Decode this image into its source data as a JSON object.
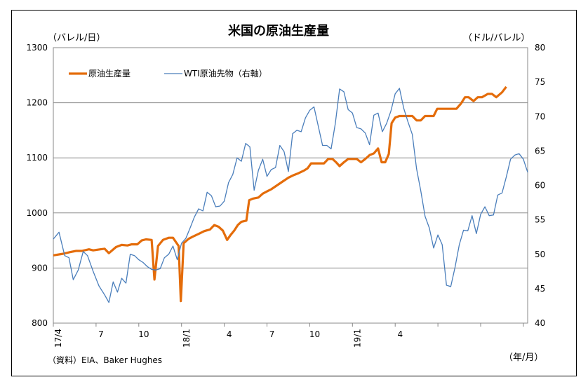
{
  "chart_data": {
    "type": "line",
    "title": "米国の原油生産量",
    "left_axis_unit": "（バレル/日）",
    "right_axis_unit": "（ドル/バレル）",
    "x_axis_unit": "（年/月）",
    "source": "（資料）EIA、Baker Hughes",
    "left_ylim": [
      800,
      1300
    ],
    "left_yticks": [
      800,
      900,
      1000,
      1100,
      1200,
      1300
    ],
    "right_ylim": [
      40,
      80
    ],
    "right_yticks": [
      40,
      45,
      50,
      55,
      60,
      65,
      70,
      75,
      80
    ],
    "grid": true,
    "legend_position": "top-left",
    "x_range": [
      "2017-04",
      "2019-05"
    ],
    "x_ticks": [
      {
        "label": "17/4",
        "rotated": true
      },
      {
        "label": "7",
        "rotated": false
      },
      {
        "label": "10",
        "rotated": false
      },
      {
        "label": "18/1",
        "rotated": true
      },
      {
        "label": "4",
        "rotated": false
      },
      {
        "label": "7",
        "rotated": false
      },
      {
        "label": "10",
        "rotated": false
      },
      {
        "label": "19/1",
        "rotated": true
      },
      {
        "label": "4",
        "rotated": false
      }
    ],
    "series": [
      {
        "name": "原油生産量",
        "axis": "left",
        "color": "#E46C0A",
        "points": [
          [
            0,
            923
          ],
          [
            0.7,
            926
          ],
          [
            1.2,
            929
          ],
          [
            1.6,
            931
          ],
          [
            2.0,
            931
          ],
          [
            2.5,
            934
          ],
          [
            2.8,
            932
          ],
          [
            3.3,
            934
          ],
          [
            3.6,
            935
          ],
          [
            3.9,
            927
          ],
          [
            4.4,
            938
          ],
          [
            4.8,
            942
          ],
          [
            5.2,
            941
          ],
          [
            5.5,
            943
          ],
          [
            5.9,
            943
          ],
          [
            6.2,
            950
          ],
          [
            6.5,
            952
          ],
          [
            6.9,
            951
          ],
          [
            7.1,
            879
          ],
          [
            7.35,
            940
          ],
          [
            7.7,
            951
          ],
          [
            8.1,
            955
          ],
          [
            8.4,
            955
          ],
          [
            8.8,
            940
          ],
          [
            8.95,
            840
          ],
          [
            9.15,
            945
          ],
          [
            9.5,
            953
          ],
          [
            9.8,
            957
          ],
          [
            10.2,
            962
          ],
          [
            10.6,
            967
          ],
          [
            11.0,
            970
          ],
          [
            11.3,
            978
          ],
          [
            11.6,
            975
          ],
          [
            11.9,
            968
          ],
          [
            12.2,
            951
          ],
          [
            12.45,
            960
          ],
          [
            12.7,
            968
          ],
          [
            12.95,
            978
          ],
          [
            13.2,
            984
          ],
          [
            13.55,
            986
          ],
          [
            13.75,
            1023
          ],
          [
            14.0,
            1026
          ],
          [
            14.4,
            1028
          ],
          [
            14.7,
            1035
          ],
          [
            15.0,
            1039
          ],
          [
            15.3,
            1043
          ],
          [
            15.7,
            1050
          ],
          [
            16.1,
            1057
          ],
          [
            16.5,
            1064
          ],
          [
            16.9,
            1069
          ],
          [
            17.2,
            1072
          ],
          [
            17.6,
            1077
          ],
          [
            17.85,
            1081
          ],
          [
            18.1,
            1090
          ],
          [
            18.4,
            1090
          ],
          [
            18.7,
            1090
          ],
          [
            19.0,
            1090
          ],
          [
            19.3,
            1098
          ],
          [
            19.6,
            1098
          ],
          [
            19.85,
            1092
          ],
          [
            20.1,
            1085
          ],
          [
            20.4,
            1092
          ],
          [
            20.7,
            1098
          ],
          [
            21.0,
            1098
          ],
          [
            21.3,
            1098
          ],
          [
            21.6,
            1092
          ],
          [
            21.9,
            1098
          ],
          [
            22.2,
            1105
          ],
          [
            22.5,
            1108
          ],
          [
            22.8,
            1117
          ],
          [
            23.05,
            1092
          ],
          [
            23.3,
            1092
          ],
          [
            23.55,
            1107
          ],
          [
            23.75,
            1163
          ],
          [
            24.0,
            1173
          ],
          [
            24.3,
            1176
          ],
          [
            24.6,
            1176
          ],
          [
            24.9,
            1176
          ],
          [
            25.2,
            1176
          ],
          [
            25.5,
            1168
          ],
          [
            25.8,
            1168
          ],
          [
            26.1,
            1176
          ],
          [
            26.4,
            1176
          ],
          [
            26.7,
            1176
          ],
          [
            26.95,
            1189
          ],
          [
            27.3,
            1189
          ],
          [
            27.7,
            1189
          ],
          [
            28.0,
            1189
          ],
          [
            28.3,
            1189
          ],
          [
            28.6,
            1198
          ],
          [
            28.9,
            1210
          ],
          [
            29.15,
            1210
          ],
          [
            29.5,
            1203
          ],
          [
            29.8,
            1210
          ],
          [
            30.1,
            1210
          ],
          [
            30.5,
            1216
          ],
          [
            30.8,
            1216
          ],
          [
            31.1,
            1210
          ],
          [
            31.5,
            1219
          ],
          [
            31.8,
            1229
          ]
        ]
      },
      {
        "name": "WTI原油先物（右軸）",
        "axis": "right",
        "color": "#4A7EBB",
        "points": [
          [
            0,
            52.2
          ],
          [
            0.4,
            53.2
          ],
          [
            0.8,
            49.8
          ],
          [
            1.1,
            49.5
          ],
          [
            1.4,
            46.3
          ],
          [
            1.75,
            47.7
          ],
          [
            2.1,
            50.4
          ],
          [
            2.4,
            49.8
          ],
          [
            2.8,
            47.5
          ],
          [
            3.2,
            45.4
          ],
          [
            3.6,
            44.1
          ],
          [
            3.9,
            43.0
          ],
          [
            4.2,
            46.0
          ],
          [
            4.5,
            44.5
          ],
          [
            4.8,
            46.5
          ],
          [
            5.1,
            45.8
          ],
          [
            5.4,
            50.0
          ],
          [
            5.7,
            49.8
          ],
          [
            6.0,
            49.2
          ],
          [
            6.3,
            48.8
          ],
          [
            6.6,
            48.2
          ],
          [
            6.9,
            47.8
          ],
          [
            7.2,
            47.7
          ],
          [
            7.5,
            47.9
          ],
          [
            7.8,
            49.5
          ],
          [
            8.1,
            50.0
          ],
          [
            8.4,
            51.2
          ],
          [
            8.7,
            49.2
          ],
          [
            9.0,
            51.6
          ],
          [
            9.3,
            52.3
          ],
          [
            9.6,
            53.8
          ],
          [
            9.9,
            55.4
          ],
          [
            10.2,
            56.6
          ],
          [
            10.5,
            56.3
          ],
          [
            10.8,
            59.0
          ],
          [
            11.1,
            58.5
          ],
          [
            11.4,
            56.9
          ],
          [
            11.7,
            57.0
          ],
          [
            12.0,
            57.7
          ],
          [
            12.3,
            60.4
          ],
          [
            12.6,
            61.6
          ],
          [
            12.9,
            64.0
          ],
          [
            13.2,
            63.5
          ],
          [
            13.5,
            66.1
          ],
          [
            13.8,
            65.6
          ],
          [
            14.1,
            59.3
          ],
          [
            14.4,
            62.2
          ],
          [
            14.7,
            63.8
          ],
          [
            15.0,
            61.3
          ],
          [
            15.3,
            62.3
          ],
          [
            15.6,
            62.6
          ],
          [
            15.9,
            65.8
          ],
          [
            16.2,
            64.9
          ],
          [
            16.5,
            62.0
          ],
          [
            16.8,
            67.5
          ],
          [
            17.1,
            68.0
          ],
          [
            17.4,
            67.8
          ],
          [
            17.7,
            69.8
          ],
          [
            18.0,
            70.9
          ],
          [
            18.3,
            71.4
          ],
          [
            18.6,
            68.6
          ],
          [
            18.9,
            65.8
          ],
          [
            19.2,
            65.8
          ],
          [
            19.5,
            65.3
          ],
          [
            19.8,
            69.0
          ],
          [
            20.1,
            74.0
          ],
          [
            20.4,
            73.6
          ],
          [
            20.7,
            71.0
          ],
          [
            21.0,
            70.5
          ],
          [
            21.3,
            68.4
          ],
          [
            21.6,
            68.2
          ],
          [
            21.9,
            67.6
          ],
          [
            22.2,
            65.9
          ],
          [
            22.5,
            70.2
          ],
          [
            22.8,
            70.5
          ],
          [
            23.1,
            67.8
          ],
          [
            23.4,
            69.0
          ],
          [
            23.7,
            70.8
          ],
          [
            24.0,
            73.3
          ],
          [
            24.3,
            74.1
          ],
          [
            24.6,
            71.2
          ],
          [
            24.9,
            69.2
          ],
          [
            25.2,
            67.4
          ],
          [
            25.5,
            62.4
          ],
          [
            25.8,
            59.2
          ],
          [
            26.1,
            55.5
          ],
          [
            26.4,
            53.8
          ],
          [
            26.7,
            50.9
          ],
          [
            27.0,
            52.8
          ],
          [
            27.3,
            51.4
          ],
          [
            27.6,
            45.5
          ],
          [
            27.9,
            45.3
          ],
          [
            28.2,
            48.1
          ],
          [
            28.5,
            51.4
          ],
          [
            28.8,
            53.5
          ],
          [
            29.1,
            53.4
          ],
          [
            29.4,
            55.6
          ],
          [
            29.7,
            53.0
          ],
          [
            30.0,
            55.8
          ],
          [
            30.3,
            56.9
          ],
          [
            30.6,
            55.6
          ],
          [
            30.9,
            55.7
          ],
          [
            31.2,
            58.6
          ],
          [
            31.5,
            58.9
          ],
          [
            31.8,
            61.2
          ],
          [
            32.1,
            63.8
          ],
          [
            32.4,
            64.4
          ],
          [
            32.7,
            64.6
          ],
          [
            33.0,
            63.8
          ],
          [
            33.3,
            61.9
          ]
        ]
      }
    ]
  }
}
